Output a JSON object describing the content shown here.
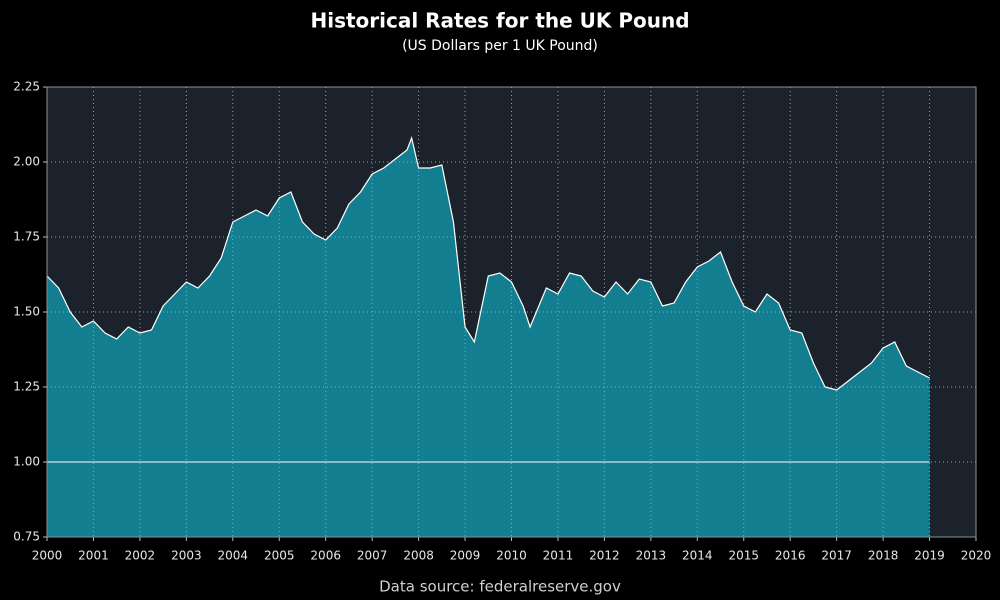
{
  "chart_data": {
    "type": "area",
    "title": "Historical Rates for the UK Pound",
    "subtitle": "(US Dollars per 1 UK Pound)",
    "source": "Data source: federalreserve.gov",
    "x": [
      2000,
      2000.25,
      2000.5,
      2000.75,
      2001,
      2001.25,
      2001.5,
      2001.75,
      2002,
      2002.25,
      2002.5,
      2002.75,
      2003,
      2003.25,
      2003.5,
      2003.75,
      2004,
      2004.25,
      2004.5,
      2004.75,
      2005,
      2005.25,
      2005.5,
      2005.75,
      2006,
      2006.25,
      2006.5,
      2006.75,
      2007,
      2007.25,
      2007.5,
      2007.75,
      2007.85,
      2008,
      2008.25,
      2008.5,
      2008.75,
      2009,
      2009.2,
      2009.5,
      2009.75,
      2010,
      2010.25,
      2010.4,
      2010.75,
      2011,
      2011.25,
      2011.5,
      2011.75,
      2012,
      2012.25,
      2012.5,
      2012.75,
      2013,
      2013.25,
      2013.5,
      2013.75,
      2014,
      2014.25,
      2014.5,
      2014.75,
      2015,
      2015.25,
      2015.5,
      2015.75,
      2016,
      2016.25,
      2016.5,
      2016.75,
      2017,
      2017.25,
      2017.5,
      2017.75,
      2018,
      2018.25,
      2018.5,
      2018.75,
      2019
    ],
    "values": [
      1.62,
      1.58,
      1.5,
      1.45,
      1.47,
      1.43,
      1.41,
      1.45,
      1.43,
      1.44,
      1.52,
      1.56,
      1.6,
      1.58,
      1.62,
      1.68,
      1.8,
      1.82,
      1.84,
      1.82,
      1.88,
      1.9,
      1.8,
      1.76,
      1.74,
      1.78,
      1.86,
      1.9,
      1.96,
      1.98,
      2.01,
      2.04,
      2.08,
      1.98,
      1.98,
      1.99,
      1.8,
      1.45,
      1.4,
      1.62,
      1.63,
      1.6,
      1.52,
      1.45,
      1.58,
      1.56,
      1.63,
      1.62,
      1.57,
      1.55,
      1.6,
      1.56,
      1.61,
      1.6,
      1.52,
      1.53,
      1.6,
      1.65,
      1.67,
      1.7,
      1.6,
      1.52,
      1.5,
      1.56,
      1.53,
      1.44,
      1.43,
      1.33,
      1.25,
      1.24,
      1.27,
      1.3,
      1.33,
      1.38,
      1.4,
      1.32,
      1.3,
      1.28
    ],
    "color": "#127e8f",
    "line_color": "#ffffff",
    "background": "#1b222c",
    "reference_line": 1,
    "xlim": [
      2000,
      2020
    ],
    "xticks": [
      2000,
      2001,
      2002,
      2003,
      2004,
      2005,
      2006,
      2007,
      2008,
      2009,
      2010,
      2011,
      2012,
      2013,
      2014,
      2015,
      2016,
      2017,
      2018,
      2019,
      2020
    ],
    "ylim": [
      0.75,
      2.25
    ],
    "yticks": [
      0.75,
      {
        "value": 1,
        "label": "1.00"
      },
      1.25,
      {
        "value": 1.5,
        "label": "1.50"
      },
      1.75,
      {
        "value": 2,
        "label": "2.00"
      },
      2.25
    ],
    "grid": true
  }
}
